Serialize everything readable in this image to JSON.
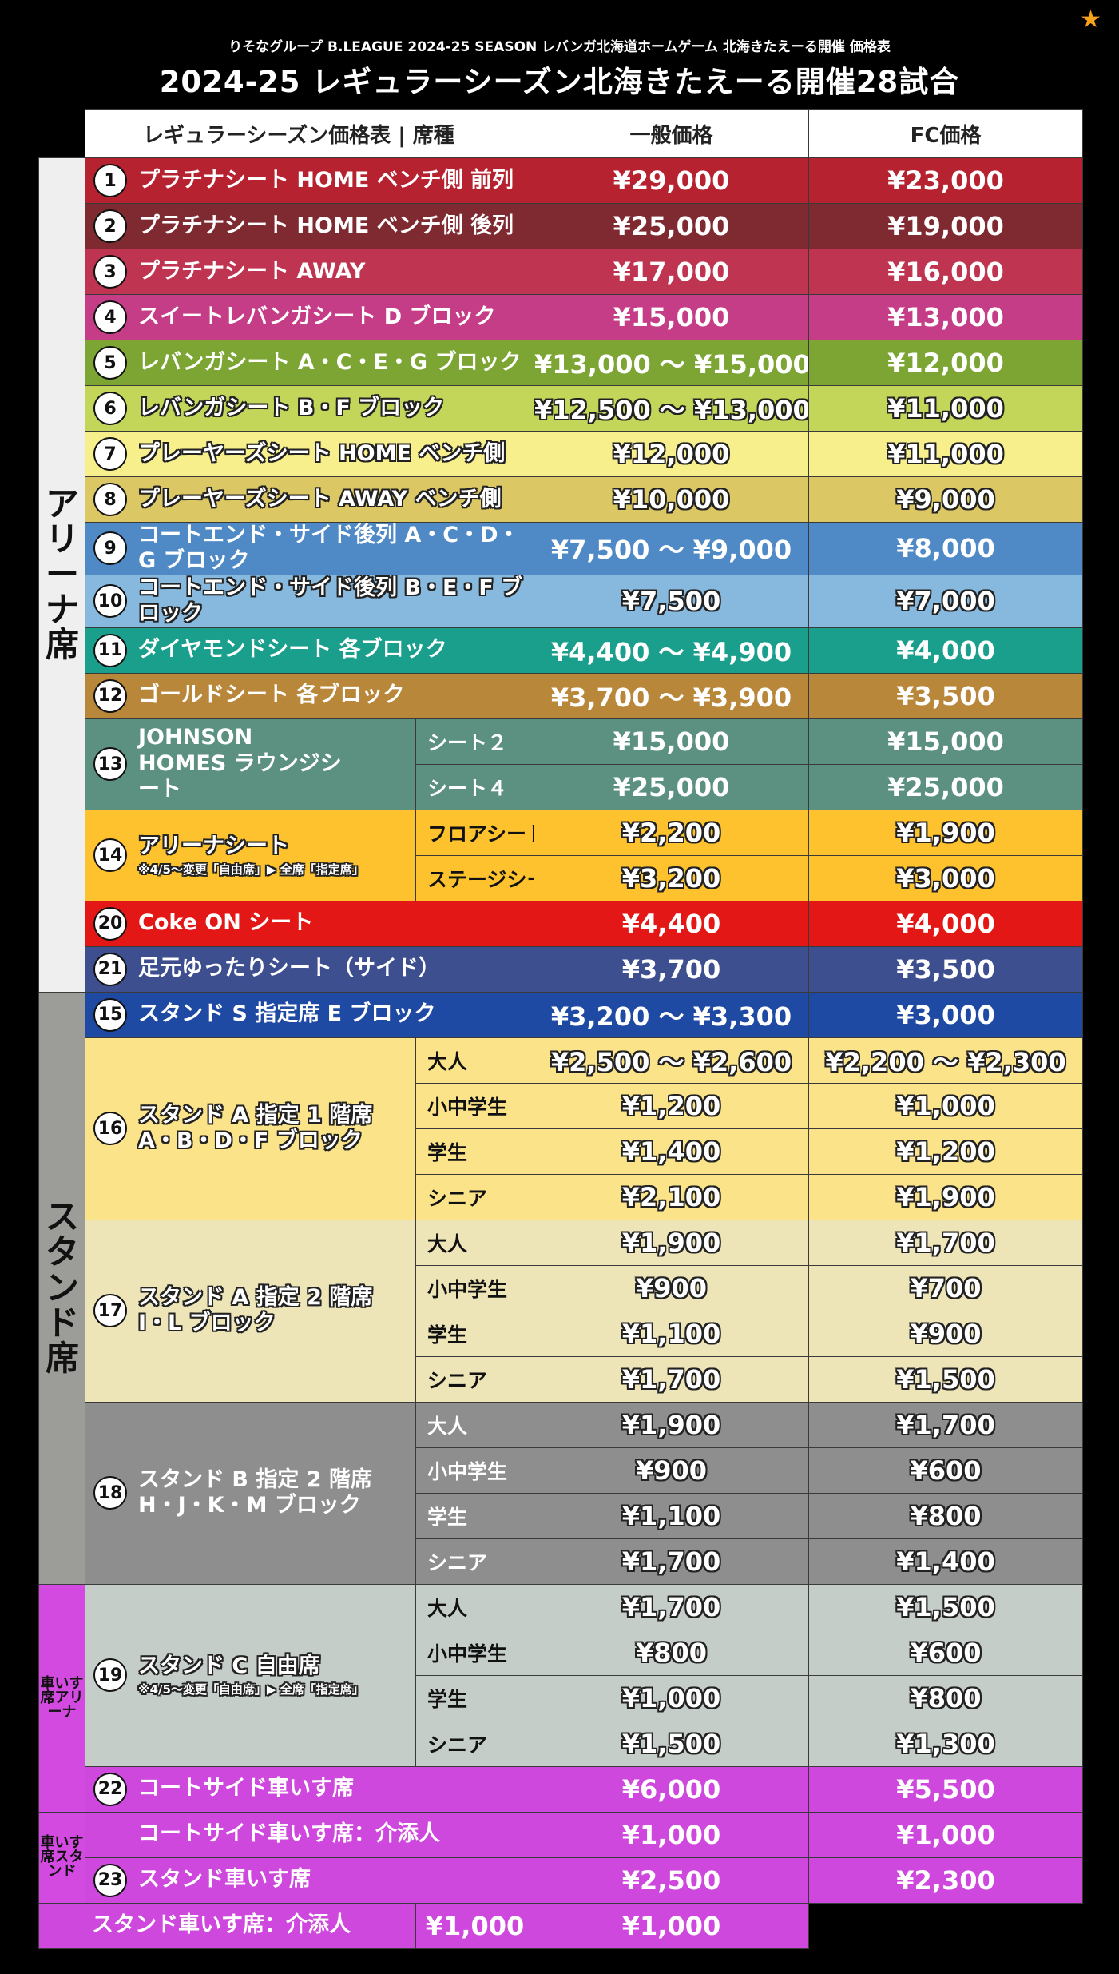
{
  "header": {
    "subtitle": "りそなグループ B.LEAGUE 2024-25 SEASON レバンガ北海道ホームゲーム 北海きたえーる開催 価格表",
    "title": "2024-25 レギュラーシーズン北海きたえーる開催28試合",
    "star_icon": "★"
  },
  "columns": {
    "seat": "レギュラーシーズン価格表 | 席種",
    "general": "一般価格",
    "fc": "FC価格"
  },
  "sections": {
    "arena": "アリーナ席",
    "stand": "スタンド席",
    "wheel_arena": "車いす席アリーナ",
    "wheel_stand": "車いす席スタンド"
  },
  "rows": [
    {
      "num": "1",
      "name": "プラチナシート HOME ベンチ側 前列",
      "general": "¥29,000",
      "fc": "¥23,000",
      "color": "#b6222f"
    },
    {
      "num": "2",
      "name": "プラチナシート HOME ベンチ側 後列",
      "general": "¥25,000",
      "fc": "¥19,000",
      "color": "#7e2a30"
    },
    {
      "num": "3",
      "name": "プラチナシート AWAY",
      "general": "¥17,000",
      "fc": "¥16,000",
      "color": "#bf3450"
    },
    {
      "num": "4",
      "name": "スイートレバンガシート D ブロック",
      "general": "¥15,000",
      "fc": "¥13,000",
      "color": "#c43d86"
    },
    {
      "num": "5",
      "name": "レバンガシート A・C・E・G ブロック",
      "general": "¥13,000 ～ ¥15,000",
      "fc": "¥12,000",
      "color": "#7ca534"
    },
    {
      "num": "6",
      "name": "レバンガシート B・F ブロック",
      "general": "¥12,500 ～ ¥13,000",
      "fc": "¥11,000",
      "color": "#c4d65a"
    },
    {
      "num": "7",
      "name": "プレーヤーズシート HOME ベンチ側",
      "general": "¥12,000",
      "fc": "¥11,000",
      "color": "#f7ee8c"
    },
    {
      "num": "8",
      "name": "プレーヤーズシート AWAY ベンチ側",
      "general": "¥10,000",
      "fc": "¥9,000",
      "color": "#dcc765"
    },
    {
      "num": "9",
      "name": "コートエンド・サイド後列 A・C・D・G ブロック",
      "general": "¥7,500 ～ ¥9,000",
      "fc": "¥8,000",
      "color": "#4f8ac6"
    },
    {
      "num": "10",
      "name": "コートエンド・サイド後列 B・E・F ブロック",
      "general": "¥7,500",
      "fc": "¥7,000",
      "color": "#87b8dd"
    },
    {
      "num": "11",
      "name": "ダイヤモンドシート 各ブロック",
      "general": "¥4,400 ～ ¥4,900",
      "fc": "¥4,000",
      "color": "#1a9f8c"
    },
    {
      "num": "12",
      "name": "ゴールドシート 各ブロック",
      "general": "¥3,700 ～ ¥3,900",
      "fc": "¥3,500",
      "color": "#b8873a"
    },
    {
      "num": "13",
      "name": "JOHNSON HOMES ラウンジシート",
      "color": "#5c9080",
      "subs": [
        {
          "sub": "シート２",
          "general": "¥15,000",
          "fc": "¥15,000"
        },
        {
          "sub": "シート４",
          "general": "¥25,000",
          "fc": "¥25,000"
        }
      ]
    },
    {
      "num": "14",
      "name": "アリーナシート",
      "note": "※4/5～変更「自由席」▶ 全席「指定席」",
      "color": "#fdc22e",
      "subs": [
        {
          "sub": "フロアシート",
          "general": "¥2,200",
          "fc": "¥1,900"
        },
        {
          "sub": "ステージシート",
          "general": "¥3,200",
          "fc": "¥3,000"
        }
      ]
    },
    {
      "num": "20",
      "name": "Coke ON シート",
      "general": "¥4,400",
      "fc": "¥4,000",
      "color": "#e31816"
    },
    {
      "num": "21",
      "name": "足元ゆったりシート（サイド）",
      "general": "¥3,700",
      "fc": "¥3,500",
      "color": "#3e4f8f"
    },
    {
      "num": "15",
      "name": "スタンド S 指定席 E ブロック",
      "general": "¥3,200 ～ ¥3,300",
      "fc": "¥3,000",
      "color": "#1f4aa3"
    },
    {
      "num": "16",
      "name": "スタンド A 指定 1 階席 A・B・D・F ブロック",
      "color": "#fbe38a",
      "subs": [
        {
          "sub": "大人",
          "general": "¥2,500 ～ ¥2,600",
          "fc": "¥2,200 ～ ¥2,300"
        },
        {
          "sub": "小中学生",
          "general": "¥1,200",
          "fc": "¥1,000"
        },
        {
          "sub": "学生",
          "general": "¥1,400",
          "fc": "¥1,200"
        },
        {
          "sub": "シニア",
          "general": "¥2,100",
          "fc": "¥1,900"
        }
      ]
    },
    {
      "num": "17",
      "name": "スタンド A 指定 2 階席 I・L ブロック",
      "color": "#ede4b8",
      "subs": [
        {
          "sub": "大人",
          "general": "¥1,900",
          "fc": "¥1,700"
        },
        {
          "sub": "小中学生",
          "general": "¥900",
          "fc": "¥700"
        },
        {
          "sub": "学生",
          "general": "¥1,100",
          "fc": "¥900"
        },
        {
          "sub": "シニア",
          "general": "¥1,700",
          "fc": "¥1,500"
        }
      ]
    },
    {
      "num": "18",
      "name": "スタンド B 指定 2 階席 H・J・K・M ブロック",
      "color": "#8e8e8e",
      "subs": [
        {
          "sub": "大人",
          "general": "¥1,900",
          "fc": "¥1,700"
        },
        {
          "sub": "小中学生",
          "general": "¥900",
          "fc": "¥600"
        },
        {
          "sub": "学生",
          "general": "¥1,100",
          "fc": "¥800"
        },
        {
          "sub": "シニア",
          "general": "¥1,700",
          "fc": "¥1,400"
        }
      ]
    },
    {
      "num": "19",
      "name": "スタンド C 自由席",
      "note": "※4/5～変更「自由席」▶ 全席「指定席」",
      "color": "#c5cdc9",
      "subs": [
        {
          "sub": "大人",
          "general": "¥1,700",
          "fc": "¥1,500"
        },
        {
          "sub": "小中学生",
          "general": "¥800",
          "fc": "¥600"
        },
        {
          "sub": "学生",
          "general": "¥1,000",
          "fc": "¥800"
        },
        {
          "sub": "シニア",
          "general": "¥1,500",
          "fc": "¥1,300"
        }
      ]
    },
    {
      "num": "22",
      "name": "コートサイド車いす席",
      "general": "¥6,000",
      "fc": "¥5,500",
      "color": "#cf48dd"
    },
    {
      "num": "",
      "name": "コートサイド車いす席：介添人",
      "general": "¥1,000",
      "fc": "¥1,000",
      "color": "#cf48dd"
    },
    {
      "num": "23",
      "name": "スタンド車いす席",
      "general": "¥2,500",
      "fc": "¥2,300",
      "color": "#cf48dd"
    },
    {
      "num": "",
      "name": "スタンド車いす席：介添人",
      "general": "¥1,000",
      "fc": "¥1,000",
      "color": "#cf48dd"
    }
  ]
}
